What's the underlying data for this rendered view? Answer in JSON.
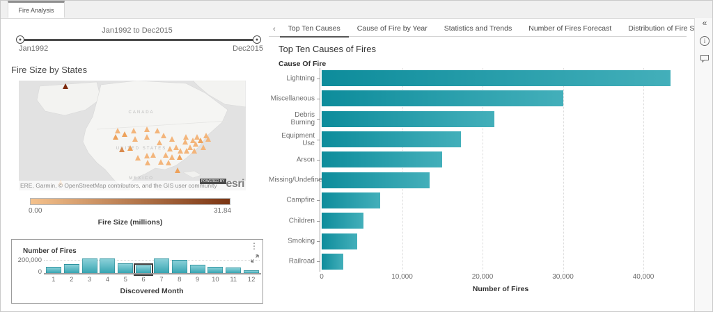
{
  "window": {
    "doc_tab": "Fire Analysis"
  },
  "time_slider": {
    "title": "Jan1992 to Dec2015",
    "start_label": "Jan1992",
    "end_label": "Dec2015"
  },
  "map_panel": {
    "title": "Fire Size by States",
    "labels": {
      "canada": "CANADA",
      "us": "UNITED STATES",
      "mexico": "MEXICO"
    },
    "attribution": "ERE, Garmin, © OpenStreetMap contributors, and the GIS user community",
    "powered_by": "POWERED BY",
    "esri": "esri",
    "legend": {
      "min": "0.00",
      "max": "31.84",
      "caption": "Fire Size (millions)",
      "gradient_start": "#f5c28d",
      "gradient_end": "#7a3412"
    },
    "markers": [
      {
        "x": 20.5,
        "y": 7.6,
        "color": "#7d2a0e"
      },
      {
        "x": 18.3,
        "y": 95.6,
        "color": "#f6c38b"
      },
      {
        "x": 43.5,
        "y": 48.1,
        "color": "#f3b57b"
      },
      {
        "x": 46.6,
        "y": 51.3,
        "color": "#eda25c"
      },
      {
        "x": 50.6,
        "y": 48.1,
        "color": "#f3b57b"
      },
      {
        "x": 56.5,
        "y": 46.8,
        "color": "#f3b57b"
      },
      {
        "x": 60.9,
        "y": 48.1,
        "color": "#f3b57b"
      },
      {
        "x": 42.5,
        "y": 53.8,
        "color": "#eda25c"
      },
      {
        "x": 51.2,
        "y": 55.7,
        "color": "#f3b57b"
      },
      {
        "x": 56.5,
        "y": 53.8,
        "color": "#f3b57b"
      },
      {
        "x": 63.7,
        "y": 52.5,
        "color": "#f3b57b"
      },
      {
        "x": 67.4,
        "y": 55.7,
        "color": "#f3b57b"
      },
      {
        "x": 45.3,
        "y": 65.2,
        "color": "#d98a4d"
      },
      {
        "x": 49.1,
        "y": 63.9,
        "color": "#eda25c"
      },
      {
        "x": 52.5,
        "y": 72.8,
        "color": "#f3b57b"
      },
      {
        "x": 56.5,
        "y": 70.9,
        "color": "#f3b57b"
      },
      {
        "x": 59.3,
        "y": 70.3,
        "color": "#f3b57b"
      },
      {
        "x": 62.1,
        "y": 58.9,
        "color": "#f3b57b"
      },
      {
        "x": 64.6,
        "y": 70.3,
        "color": "#f3b57b"
      },
      {
        "x": 66.5,
        "y": 64.6,
        "color": "#f3b57b"
      },
      {
        "x": 67.4,
        "y": 72.2,
        "color": "#f3b57b"
      },
      {
        "x": 69.3,
        "y": 63.3,
        "color": "#f3b57b"
      },
      {
        "x": 70.8,
        "y": 72.2,
        "color": "#eda25c"
      },
      {
        "x": 71.1,
        "y": 66.5,
        "color": "#f3b57b"
      },
      {
        "x": 73.3,
        "y": 58.2,
        "color": "#f3b57b"
      },
      {
        "x": 73.9,
        "y": 66.5,
        "color": "#f3b57b"
      },
      {
        "x": 75.5,
        "y": 63.3,
        "color": "#f3b57b"
      },
      {
        "x": 76.7,
        "y": 57.0,
        "color": "#f3b57b"
      },
      {
        "x": 77.3,
        "y": 66.5,
        "color": "#f3b57b"
      },
      {
        "x": 78.0,
        "y": 60.1,
        "color": "#f3b57b"
      },
      {
        "x": 78.6,
        "y": 53.8,
        "color": "#f3b57b"
      },
      {
        "x": 80.1,
        "y": 57.0,
        "color": "#eda25c"
      },
      {
        "x": 81.4,
        "y": 63.3,
        "color": "#f3b57b"
      },
      {
        "x": 82.6,
        "y": 52.5,
        "color": "#f3b57b"
      },
      {
        "x": 83.5,
        "y": 55.7,
        "color": "#f3b57b"
      },
      {
        "x": 56.8,
        "y": 77.2,
        "color": "#f3b57b"
      },
      {
        "x": 62.7,
        "y": 76.6,
        "color": "#f3b57b"
      },
      {
        "x": 66.1,
        "y": 77.2,
        "color": "#f3b57b"
      },
      {
        "x": 69.9,
        "y": 84.2,
        "color": "#eda25c"
      },
      {
        "x": 73.6,
        "y": 53.8,
        "color": "#f3b57b"
      }
    ]
  },
  "tabs_panel": {
    "left_arrow": "‹",
    "right_arrow": "›",
    "tabs": [
      {
        "label": "Top Ten Causes",
        "active": true
      },
      {
        "label": "Cause of Fire by Year",
        "active": false
      },
      {
        "label": "Statistics and Trends",
        "active": false
      },
      {
        "label": "Number of Fires Forecast",
        "active": false
      },
      {
        "label": "Distribution of Fire Size",
        "active": false
      }
    ]
  },
  "right_rail": {
    "collapse_icon": "«",
    "info_glyph": "i"
  },
  "month_widget": {
    "kebab_icon": "⋮"
  },
  "chart_data": [
    {
      "type": "bar",
      "orientation": "horizontal",
      "title": "Top Ten Causes of Fires",
      "ylabel": "Cause Of Fire",
      "xlabel": "Number of Fires",
      "categories": [
        "Lightning",
        "Miscellaneous",
        "Debris Burning",
        "Equipment Use",
        "Arson",
        "Missing/Undefine",
        "Campfire",
        "Children",
        "Smoking",
        "Railroad"
      ],
      "values": [
        43400,
        30000,
        21500,
        17300,
        15000,
        13400,
        7300,
        5200,
        4400,
        2700
      ],
      "xlim": [
        0,
        44500
      ],
      "xticks": [
        0,
        10000,
        20000,
        30000,
        40000
      ],
      "xtick_labels": [
        "0",
        "10,000",
        "20,000",
        "30,000",
        "40,000"
      ],
      "grid": "vertical-dotted",
      "bar_color_start": "#0d8c9b",
      "bar_color_end": "#43afba"
    },
    {
      "type": "bar",
      "orientation": "vertical",
      "ylabel": "Number of Fires",
      "xlabel": "Discovered Month",
      "categories": [
        "1",
        "2",
        "3",
        "4",
        "5",
        "6",
        "7",
        "8",
        "9",
        "10",
        "11",
        "12"
      ],
      "values": [
        95000,
        140000,
        215000,
        215000,
        150000,
        120000,
        215000,
        195000,
        125000,
        95000,
        85000,
        50000
      ],
      "selected_index": 5,
      "yticks": [
        0,
        200000
      ],
      "ytick_labels": [
        "0",
        "200,000"
      ],
      "ylim": [
        0,
        230000
      ],
      "grid": "horizontal-dotted",
      "bar_color_top": "#8ad0d8",
      "bar_color_bottom": "#38a5b2"
    }
  ]
}
